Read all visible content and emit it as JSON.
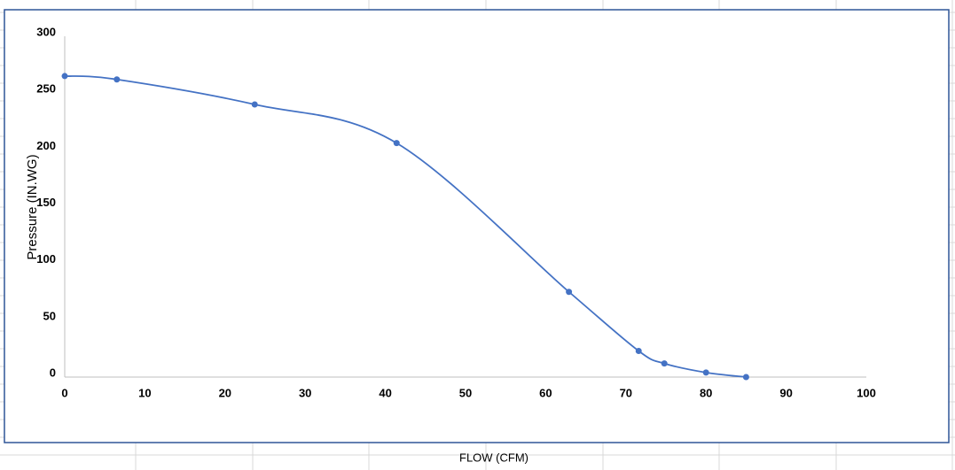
{
  "chart_data": {
    "type": "line",
    "x_label": "FLOW (CFM)",
    "y_label": "Pressure (IN.WG)",
    "x": [
      0,
      6.5,
      23.7,
      41.4,
      62.9,
      71.6,
      74.8,
      80,
      85
    ],
    "series": [
      {
        "name": "Pressure",
        "color": "#4472c4",
        "values": [
          265,
          262,
          240,
          206,
          75,
          23,
          12,
          4,
          0
        ]
      }
    ],
    "xlim": [
      0,
      100
    ],
    "xticks": [
      0,
      10,
      20,
      30,
      40,
      50,
      60,
      70,
      80,
      90,
      100
    ],
    "ylim": [
      0,
      300
    ],
    "yticks": [
      0,
      50,
      100,
      150,
      200,
      250,
      300
    ],
    "grid": false,
    "smooth": true,
    "markers": true
  }
}
